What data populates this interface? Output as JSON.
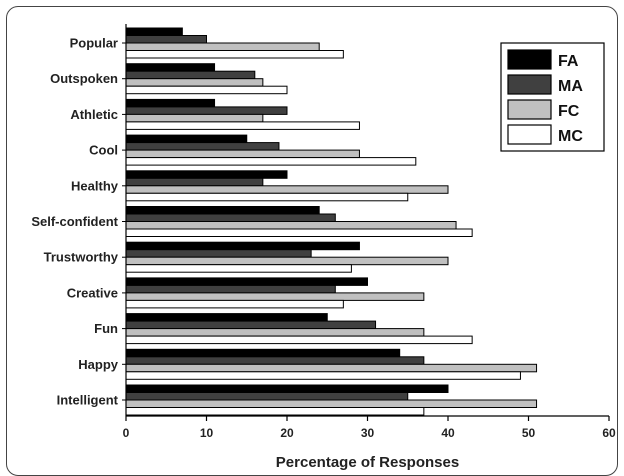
{
  "chart_data": {
    "type": "bar",
    "orientation": "horizontal",
    "categories": [
      "Popular",
      "Outspoken",
      "Athletic",
      "Cool",
      "Healthy",
      "Self-confident",
      "Trustworthy",
      "Creative",
      "Fun",
      "Happy",
      "Intelligent"
    ],
    "series": [
      {
        "name": "FA",
        "color": "#000000",
        "values": [
          7,
          11,
          11,
          15,
          20,
          24,
          29,
          30,
          25,
          34,
          40
        ]
      },
      {
        "name": "MA",
        "color": "#404040",
        "values": [
          10,
          16,
          20,
          19,
          17,
          26,
          23,
          26,
          31,
          37,
          35
        ]
      },
      {
        "name": "FC",
        "color": "#c0c0c0",
        "values": [
          24,
          17,
          17,
          29,
          40,
          41,
          40,
          37,
          37,
          51,
          51
        ]
      },
      {
        "name": "MC",
        "color": "#ffffff",
        "values": [
          27,
          20,
          29,
          36,
          35,
          43,
          28,
          27,
          43,
          49,
          37
        ]
      }
    ],
    "xlabel": "Percentage of Responses",
    "xlim": [
      0,
      60
    ],
    "xticks": [
      "0",
      "10",
      "20",
      "30",
      "40",
      "50",
      "60"
    ],
    "legend_position": "top-right"
  }
}
